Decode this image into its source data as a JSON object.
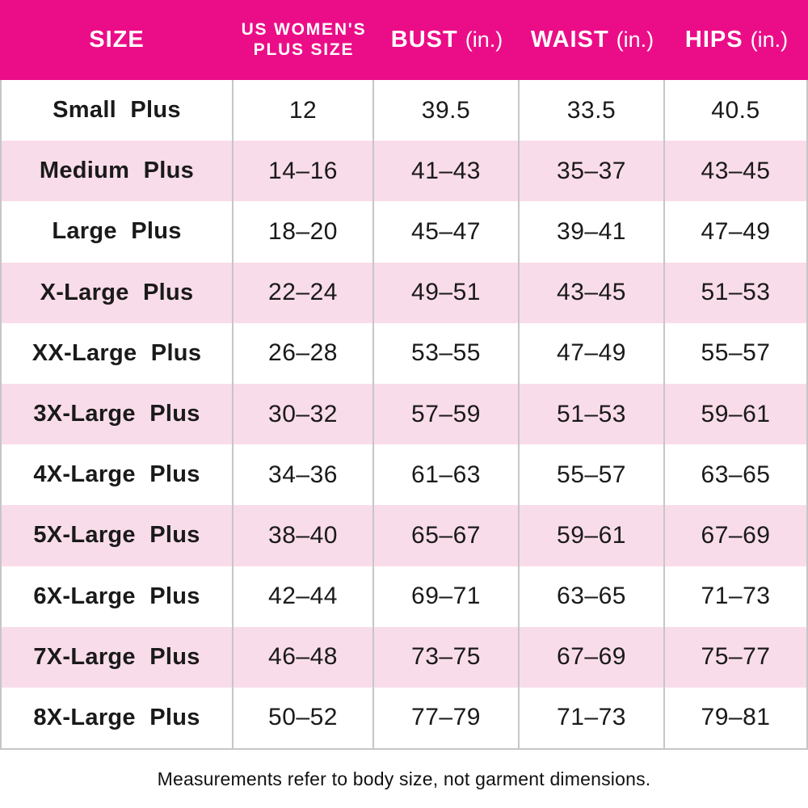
{
  "colors": {
    "header_bg": "#EB0D87",
    "row_alt_bg": "#F9DCE9",
    "divider": "#C6C6C6",
    "header_text": "#FFFFFF",
    "body_text": "#1A1A1A"
  },
  "header": {
    "size": "SIZE",
    "us_plus_line1": "US WOMEN'S",
    "us_plus_line2": "PLUS SIZE",
    "bust_name": "BUST",
    "bust_unit": "(in.)",
    "waist_name": "WAIST",
    "waist_unit": "(in.)",
    "hips_name": "HIPS",
    "hips_unit": "(in.)"
  },
  "rows": [
    {
      "size": "Small Plus",
      "us_plus_size": "12",
      "bust": "39.5",
      "waist": "33.5",
      "hips": "40.5"
    },
    {
      "size": "Medium Plus",
      "us_plus_size": "14–16",
      "bust": "41–43",
      "waist": "35–37",
      "hips": "43–45"
    },
    {
      "size": "Large Plus",
      "us_plus_size": "18–20",
      "bust": "45–47",
      "waist": "39–41",
      "hips": "47–49"
    },
    {
      "size": "X-Large Plus",
      "us_plus_size": "22–24",
      "bust": "49–51",
      "waist": "43–45",
      "hips": "51–53"
    },
    {
      "size": "XX-Large Plus",
      "us_plus_size": "26–28",
      "bust": "53–55",
      "waist": "47–49",
      "hips": "55–57"
    },
    {
      "size": "3X-Large Plus",
      "us_plus_size": "30–32",
      "bust": "57–59",
      "waist": "51–53",
      "hips": "59–61"
    },
    {
      "size": "4X-Large Plus",
      "us_plus_size": "34–36",
      "bust": "61–63",
      "waist": "55–57",
      "hips": "63–65"
    },
    {
      "size": "5X-Large Plus",
      "us_plus_size": "38–40",
      "bust": "65–67",
      "waist": "59–61",
      "hips": "67–69"
    },
    {
      "size": "6X-Large Plus",
      "us_plus_size": "42–44",
      "bust": "69–71",
      "waist": "63–65",
      "hips": "71–73"
    },
    {
      "size": "7X-Large Plus",
      "us_plus_size": "46–48",
      "bust": "73–75",
      "waist": "67–69",
      "hips": "75–77"
    },
    {
      "size": "8X-Large Plus",
      "us_plus_size": "50–52",
      "bust": "77–79",
      "waist": "71–73",
      "hips": "79–81"
    }
  ],
  "footer_note": "Measurements refer to body size, not garment dimensions.",
  "chart_data": {
    "type": "table",
    "title": "US Women's Plus Size Chart",
    "columns": [
      "SIZE",
      "US WOMEN'S PLUS SIZE",
      "BUST (in.)",
      "WAIST (in.)",
      "HIPS (in.)"
    ],
    "rows": [
      [
        "Small Plus",
        "12",
        "39.5",
        "33.5",
        "40.5"
      ],
      [
        "Medium Plus",
        "14–16",
        "41–43",
        "35–37",
        "43–45"
      ],
      [
        "Large Plus",
        "18–20",
        "45–47",
        "39–41",
        "47–49"
      ],
      [
        "X-Large Plus",
        "22–24",
        "49–51",
        "43–45",
        "51–53"
      ],
      [
        "XX-Large Plus",
        "26–28",
        "53–55",
        "47–49",
        "55–57"
      ],
      [
        "3X-Large Plus",
        "30–32",
        "57–59",
        "51–53",
        "59–61"
      ],
      [
        "4X-Large Plus",
        "34–36",
        "61–63",
        "55–57",
        "63–65"
      ],
      [
        "5X-Large Plus",
        "38–40",
        "65–67",
        "59–61",
        "67–69"
      ],
      [
        "6X-Large Plus",
        "42–44",
        "69–71",
        "63–65",
        "71–73"
      ],
      [
        "7X-Large Plus",
        "46–48",
        "73–75",
        "67–69",
        "75–77"
      ],
      [
        "8X-Large Plus",
        "50–52",
        "77–79",
        "71–73",
        "79–81"
      ]
    ],
    "notes": "Measurements refer to body size, not garment dimensions.",
    "layout": {
      "alternating_row_colors": [
        "#FFFFFF",
        "#F9DCE9"
      ],
      "header_color": "#EB0D87"
    }
  }
}
